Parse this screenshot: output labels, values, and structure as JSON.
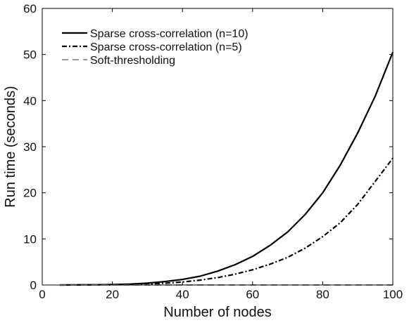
{
  "chart_data": {
    "type": "line",
    "title": "",
    "xlabel": "Number of nodes",
    "ylabel": "Run time (seconds)",
    "xlim": [
      0,
      100
    ],
    "ylim": [
      0,
      60
    ],
    "xticks": [
      0,
      20,
      40,
      60,
      80,
      100
    ],
    "yticks": [
      0,
      10,
      20,
      30,
      40,
      50,
      60
    ],
    "grid": false,
    "legend_position": "top-left",
    "x": [
      5,
      10,
      15,
      20,
      25,
      30,
      35,
      40,
      45,
      50,
      55,
      60,
      65,
      70,
      75,
      80,
      85,
      90,
      95,
      100
    ],
    "series": [
      {
        "name": "Sparse cross-correlation (n=10)",
        "style": "solid",
        "color": "#000000",
        "values": [
          0.0,
          0.01,
          0.04,
          0.1,
          0.2,
          0.4,
          0.75,
          1.2,
          1.9,
          3.0,
          4.4,
          6.2,
          8.6,
          11.5,
          15.3,
          20.0,
          26.0,
          33.0,
          41.0,
          50.5
        ]
      },
      {
        "name": "Sparse cross-correlation (n=5)",
        "style": "dashdot",
        "color": "#000000",
        "values": [
          0.0,
          0.01,
          0.02,
          0.05,
          0.1,
          0.2,
          0.38,
          0.65,
          1.05,
          1.6,
          2.35,
          3.3,
          4.5,
          6.0,
          8.0,
          10.5,
          13.5,
          17.5,
          22.5,
          27.5
        ]
      },
      {
        "name": "Soft-thresholding",
        "style": "dashed",
        "color": "#999999",
        "values": [
          0.0,
          0.0,
          0.0,
          0.0,
          0.0,
          0.0,
          0.0,
          0.0,
          0.0,
          0.0,
          0.0,
          0.0,
          0.0,
          0.0,
          0.0,
          0.0,
          0.0,
          0.0,
          0.0,
          0.0
        ]
      }
    ]
  }
}
